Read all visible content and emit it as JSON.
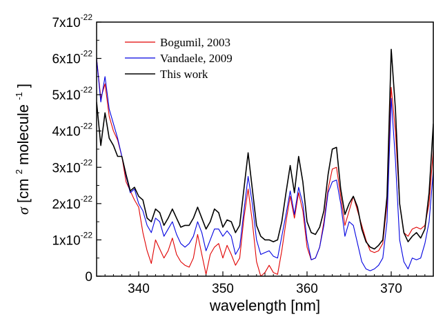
{
  "chart_data": {
    "type": "line",
    "title": "",
    "xlabel": "wavelength [nm]",
    "ylabel": {
      "sigma": "σ",
      "pre": "[cm",
      "sup1": "2",
      "mid": " molecule",
      "sup2": "-1",
      "post": "]"
    },
    "xlim": [
      335,
      375
    ],
    "ylim": [
      0,
      7e-22
    ],
    "x_ticks": [
      340,
      350,
      360,
      370
    ],
    "x_tick_labels": [
      "340",
      "350",
      "360",
      "370"
    ],
    "y_ticks": [
      0,
      1e-22,
      2e-22,
      3e-22,
      4e-22,
      5e-22,
      6e-22,
      7e-22
    ],
    "y_tick_labels": [
      {
        "text": "0",
        "exp": ""
      },
      {
        "text": "1x10",
        "exp": "-22"
      },
      {
        "text": "2x10",
        "exp": "-22"
      },
      {
        "text": "3x10",
        "exp": "-22"
      },
      {
        "text": "4x10",
        "exp": "-22"
      },
      {
        "text": "5x10",
        "exp": "-22"
      },
      {
        "text": "6x10",
        "exp": "-22"
      },
      {
        "text": "7x10",
        "exp": "-22"
      }
    ],
    "grid": false,
    "legend_position": "top-left",
    "series": [
      {
        "name": "Bogumil, 2003",
        "color": "#e00000",
        "points": [
          [
            335,
            6e-22
          ],
          [
            335.5,
            4.9e-22
          ],
          [
            336,
            5.3e-22
          ],
          [
            336.5,
            4.4e-22
          ],
          [
            337,
            4e-22
          ],
          [
            337.5,
            3.75e-22
          ],
          [
            338,
            3.3e-22
          ],
          [
            338.5,
            2.6e-22
          ],
          [
            339,
            2.35e-22
          ],
          [
            339.5,
            2.1e-22
          ],
          [
            340,
            1.9e-22
          ],
          [
            340.5,
            1.2e-22
          ],
          [
            341,
            7e-23
          ],
          [
            341.5,
            3.5e-23
          ],
          [
            342,
            1e-22
          ],
          [
            342.5,
            7.5e-23
          ],
          [
            343,
            5e-23
          ],
          [
            343.5,
            7e-23
          ],
          [
            344,
            1.05e-22
          ],
          [
            344.5,
            6e-23
          ],
          [
            345,
            4e-23
          ],
          [
            345.5,
            3e-23
          ],
          [
            346,
            2.5e-23
          ],
          [
            346.5,
            5e-23
          ],
          [
            347,
            1.15e-22
          ],
          [
            347.5,
            6e-23
          ],
          [
            348,
            5e-24
          ],
          [
            348.5,
            6e-23
          ],
          [
            349,
            8e-23
          ],
          [
            349.5,
            9e-23
          ],
          [
            350,
            5e-23
          ],
          [
            350.5,
            8.5e-23
          ],
          [
            351,
            6e-23
          ],
          [
            351.5,
            3e-23
          ],
          [
            352,
            5e-23
          ],
          [
            352.5,
            1.6e-22
          ],
          [
            353,
            2.4e-22
          ],
          [
            353.5,
            1.5e-22
          ],
          [
            354,
            4e-23
          ],
          [
            354.5,
            0.0
          ],
          [
            355,
            1e-23
          ],
          [
            355.5,
            3e-23
          ],
          [
            356,
            1e-23
          ],
          [
            356.5,
            5e-24
          ],
          [
            357,
            7e-23
          ],
          [
            357.5,
            1.5e-22
          ],
          [
            358,
            2.2e-22
          ],
          [
            358.5,
            1.6e-22
          ],
          [
            359,
            2.3e-22
          ],
          [
            359.5,
            1.8e-22
          ],
          [
            360,
            8e-23
          ],
          [
            360.5,
            4.5e-23
          ],
          [
            361,
            5e-23
          ],
          [
            361.5,
            8e-23
          ],
          [
            362,
            1.5e-22
          ],
          [
            362.5,
            2.4e-22
          ],
          [
            363,
            2.95e-22
          ],
          [
            363.5,
            3e-22
          ],
          [
            364,
            2.2e-22
          ],
          [
            364.5,
            1.4e-22
          ],
          [
            365,
            1.8e-22
          ],
          [
            365.5,
            2.2e-22
          ],
          [
            366,
            1.8e-22
          ],
          [
            366.5,
            1.4e-22
          ],
          [
            367,
            1e-22
          ],
          [
            367.5,
            7e-23
          ],
          [
            368,
            6.5e-23
          ],
          [
            368.5,
            7e-23
          ],
          [
            369,
            9e-23
          ],
          [
            369.5,
            2e-22
          ],
          [
            370,
            5.2e-22
          ],
          [
            370.5,
            4e-22
          ],
          [
            371,
            2e-22
          ],
          [
            371.5,
            1.2e-22
          ],
          [
            372,
            1.1e-22
          ],
          [
            372.5,
            1.3e-22
          ],
          [
            373,
            1.35e-22
          ],
          [
            373.5,
            1.3e-22
          ],
          [
            374,
            1.4e-22
          ],
          [
            374.5,
            2e-22
          ],
          [
            375,
            3.5e-22
          ]
        ]
      },
      {
        "name": "Vandaele, 2009",
        "color": "#0000e0",
        "points": [
          [
            335,
            6e-22
          ],
          [
            335.5,
            4.8e-22
          ],
          [
            336,
            5.5e-22
          ],
          [
            336.5,
            4.6e-22
          ],
          [
            337,
            4.2e-22
          ],
          [
            337.5,
            3.8e-22
          ],
          [
            338,
            3.3e-22
          ],
          [
            338.5,
            2.75e-22
          ],
          [
            339,
            2.3e-22
          ],
          [
            339.5,
            2.4e-22
          ],
          [
            340,
            2e-22
          ],
          [
            340.5,
            1.8e-22
          ],
          [
            341,
            1.4e-22
          ],
          [
            341.5,
            1.2e-22
          ],
          [
            342,
            1.6e-22
          ],
          [
            342.5,
            1.5e-22
          ],
          [
            343,
            1.1e-22
          ],
          [
            343.5,
            1.3e-22
          ],
          [
            344,
            1.5e-22
          ],
          [
            344.5,
            1.15e-22
          ],
          [
            345,
            9e-23
          ],
          [
            345.5,
            8e-23
          ],
          [
            346,
            9e-23
          ],
          [
            346.5,
            1.1e-22
          ],
          [
            347,
            1.5e-22
          ],
          [
            347.5,
            1.2e-22
          ],
          [
            348,
            7e-23
          ],
          [
            348.5,
            1e-22
          ],
          [
            349,
            1.3e-22
          ],
          [
            349.5,
            1.3e-22
          ],
          [
            350,
            1.1e-22
          ],
          [
            350.5,
            1.25e-22
          ],
          [
            351,
            1.1e-22
          ],
          [
            351.5,
            6e-23
          ],
          [
            352,
            8e-23
          ],
          [
            352.5,
            1.8e-22
          ],
          [
            353,
            2.75e-22
          ],
          [
            353.5,
            2e-22
          ],
          [
            354,
            1e-22
          ],
          [
            354.5,
            6e-23
          ],
          [
            355,
            6.5e-23
          ],
          [
            355.5,
            7e-23
          ],
          [
            356,
            5.5e-23
          ],
          [
            356.5,
            5e-23
          ],
          [
            357,
            1.1e-22
          ],
          [
            357.5,
            1.7e-22
          ],
          [
            358,
            2.35e-22
          ],
          [
            358.5,
            1.7e-22
          ],
          [
            359,
            2.45e-22
          ],
          [
            359.5,
            2e-22
          ],
          [
            360,
            1e-22
          ],
          [
            360.5,
            4.5e-23
          ],
          [
            361,
            5e-23
          ],
          [
            361.5,
            8e-23
          ],
          [
            362,
            1.4e-22
          ],
          [
            362.5,
            2.3e-22
          ],
          [
            363,
            2.6e-22
          ],
          [
            363.5,
            2.65e-22
          ],
          [
            364,
            2e-22
          ],
          [
            364.5,
            1.1e-22
          ],
          [
            365,
            1.5e-22
          ],
          [
            365.5,
            1.4e-22
          ],
          [
            366,
            9e-23
          ],
          [
            366.5,
            4e-23
          ],
          [
            367,
            2e-23
          ],
          [
            367.5,
            1.5e-23
          ],
          [
            368,
            2e-23
          ],
          [
            368.5,
            3e-23
          ],
          [
            369,
            5e-23
          ],
          [
            369.5,
            1.5e-22
          ],
          [
            370,
            4.9e-22
          ],
          [
            370.5,
            3.2e-22
          ],
          [
            371,
            1e-22
          ],
          [
            371.5,
            4e-23
          ],
          [
            372,
            2e-23
          ],
          [
            372.5,
            5e-23
          ],
          [
            373,
            4.5e-23
          ],
          [
            373.5,
            5e-23
          ],
          [
            374,
            9e-23
          ],
          [
            374.5,
            1.5e-22
          ],
          [
            375,
            2.9e-22
          ]
        ]
      },
      {
        "name": "This work",
        "color": "#000000",
        "points": [
          [
            335,
            4.8e-22
          ],
          [
            335.5,
            3.6e-22
          ],
          [
            336,
            4.5e-22
          ],
          [
            336.5,
            3.8e-22
          ],
          [
            337,
            3.6e-22
          ],
          [
            337.5,
            3.3e-22
          ],
          [
            338,
            3.3e-22
          ],
          [
            338.5,
            2.8e-22
          ],
          [
            339,
            2.35e-22
          ],
          [
            339.5,
            2.45e-22
          ],
          [
            340,
            2.2e-22
          ],
          [
            340.5,
            2.1e-22
          ],
          [
            341,
            1.6e-22
          ],
          [
            341.5,
            1.5e-22
          ],
          [
            342,
            1.85e-22
          ],
          [
            342.5,
            1.75e-22
          ],
          [
            343,
            1.4e-22
          ],
          [
            343.5,
            1.6e-22
          ],
          [
            344,
            1.85e-22
          ],
          [
            344.5,
            1.6e-22
          ],
          [
            345,
            1.35e-22
          ],
          [
            345.5,
            1.4e-22
          ],
          [
            346,
            1.4e-22
          ],
          [
            346.5,
            1.6e-22
          ],
          [
            347,
            1.9e-22
          ],
          [
            347.5,
            1.6e-22
          ],
          [
            348,
            1.3e-22
          ],
          [
            348.5,
            1.5e-22
          ],
          [
            349,
            1.85e-22
          ],
          [
            349.5,
            1.75e-22
          ],
          [
            350,
            1.35e-22
          ],
          [
            350.5,
            1.55e-22
          ],
          [
            351,
            1.5e-22
          ],
          [
            351.5,
            1.2e-22
          ],
          [
            352,
            1.4e-22
          ],
          [
            352.5,
            2.4e-22
          ],
          [
            353,
            3.4e-22
          ],
          [
            353.5,
            2.4e-22
          ],
          [
            354,
            1.4e-22
          ],
          [
            354.5,
            1.1e-22
          ],
          [
            355,
            1e-22
          ],
          [
            355.5,
            1e-22
          ],
          [
            356,
            9.5e-23
          ],
          [
            356.5,
            1e-22
          ],
          [
            357,
            1.5e-22
          ],
          [
            357.5,
            2.3e-22
          ],
          [
            358,
            3.05e-22
          ],
          [
            358.5,
            2.3e-22
          ],
          [
            359,
            3.3e-22
          ],
          [
            359.5,
            2.6e-22
          ],
          [
            360,
            1.5e-22
          ],
          [
            360.5,
            1.2e-22
          ],
          [
            361,
            1.15e-22
          ],
          [
            361.5,
            1.35e-22
          ],
          [
            362,
            1.8e-22
          ],
          [
            362.5,
            2.8e-22
          ],
          [
            363,
            3.5e-22
          ],
          [
            363.5,
            3.55e-22
          ],
          [
            364,
            2.4e-22
          ],
          [
            364.5,
            1.7e-22
          ],
          [
            365,
            2e-22
          ],
          [
            365.5,
            2.2e-22
          ],
          [
            366,
            1.9e-22
          ],
          [
            366.5,
            1.3e-22
          ],
          [
            367,
            9.5e-23
          ],
          [
            367.5,
            8e-23
          ],
          [
            368,
            7.5e-23
          ],
          [
            368.5,
            8.5e-23
          ],
          [
            369,
            1e-22
          ],
          [
            369.5,
            2.2e-22
          ],
          [
            370,
            6.25e-22
          ],
          [
            370.5,
            4.6e-22
          ],
          [
            371,
            2e-22
          ],
          [
            371.5,
            1.2e-22
          ],
          [
            372,
            9.5e-23
          ],
          [
            372.5,
            1.1e-22
          ],
          [
            373,
            1.2e-22
          ],
          [
            373.5,
            1.05e-22
          ],
          [
            374,
            1.3e-22
          ],
          [
            374.5,
            2.3e-22
          ],
          [
            375,
            4.2e-22
          ]
        ]
      }
    ]
  }
}
